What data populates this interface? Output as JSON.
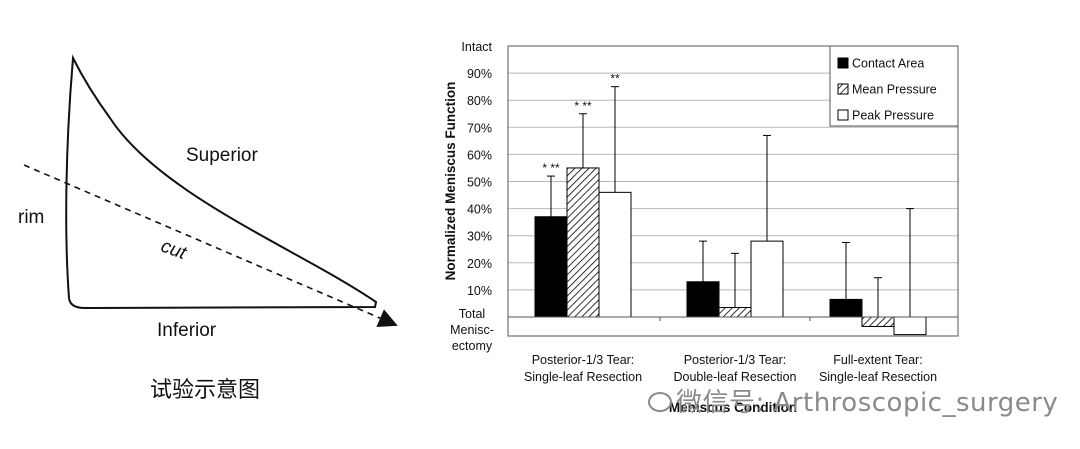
{
  "diagram": {
    "labels": {
      "superior": "Superior",
      "rim": "rim",
      "cut": "cut",
      "inferior": "Inferior"
    },
    "caption": "试验示意图"
  },
  "chart_data": {
    "type": "bar",
    "ylabel": "Normalized Meniscus Function",
    "xlabel": "Meniscus Condition",
    "ylim": [
      -0.07,
      1.0
    ],
    "y_ticks": [
      {
        "value": 1.0,
        "label": "Intact"
      },
      {
        "value": 0.9,
        "label": "90%"
      },
      {
        "value": 0.8,
        "label": "80%"
      },
      {
        "value": 0.7,
        "label": "70%"
      },
      {
        "value": 0.6,
        "label": "60%"
      },
      {
        "value": 0.5,
        "label": "50%"
      },
      {
        "value": 0.4,
        "label": "40%"
      },
      {
        "value": 0.3,
        "label": "30%"
      },
      {
        "value": 0.2,
        "label": "20%"
      },
      {
        "value": 0.1,
        "label": "10%"
      },
      {
        "value": 0.0,
        "label": "Total\nMenisc-\nectomy"
      }
    ],
    "grid": true,
    "legend_position": "top-right",
    "categories": [
      "Posterior-1/3 Tear:\nSingle-leaf Resection",
      "Posterior-1/3 Tear:\nDouble-leaf Resection",
      "Full-extent Tear:\nSingle-leaf Resection"
    ],
    "series": [
      {
        "name": "Contact Area",
        "pattern": "solid",
        "values": [
          0.37,
          0.13,
          0.065
        ],
        "error": [
          0.15,
          0.15,
          0.21
        ],
        "annotations": [
          "* **",
          "",
          ""
        ]
      },
      {
        "name": "Mean Pressure",
        "pattern": "hatched",
        "values": [
          0.55,
          0.035,
          -0.035
        ],
        "error": [
          0.2,
          0.2,
          0.18
        ],
        "annotations": [
          "* **",
          "",
          ""
        ]
      },
      {
        "name": "Peak Pressure",
        "pattern": "open",
        "values": [
          0.46,
          0.28,
          -0.065
        ],
        "error": [
          0.39,
          0.39,
          0.465
        ],
        "annotations": [
          "**",
          "",
          ""
        ]
      }
    ],
    "colors": {
      "solid": "#000000",
      "hatch": "#000000",
      "open": "#ffffff",
      "grid": "#b8b8b8"
    }
  },
  "watermark": {
    "text": "微信号: Arthroscopic_surgery"
  }
}
